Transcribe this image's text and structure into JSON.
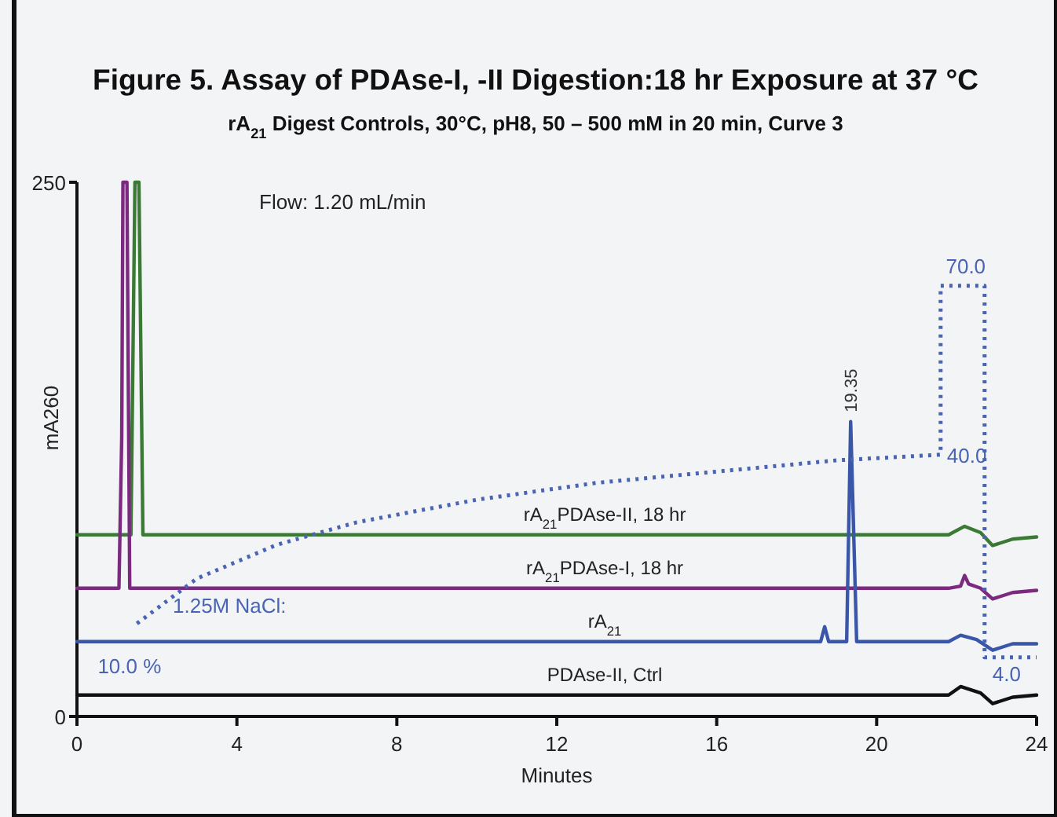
{
  "chart_data": {
    "type": "line",
    "title": "Figure 5. Assay of PDAse-I, -II Digestion:18 hr Exposure at 37 °C",
    "subtitle": "rA$_{21}$ Digest Controls, 30°C, pH8, 50 – 500 mM in 20 min, Curve 3",
    "xlabel": "Minutes",
    "ylabel": "mA260",
    "xlim": [
      0,
      24
    ],
    "xticks": [
      0,
      4,
      8,
      12,
      16,
      20,
      24
    ],
    "ylim": [
      0,
      250
    ],
    "yticks": [
      0,
      250
    ],
    "y2lim": [
      -6.5,
      88.4
    ],
    "grid": false,
    "marker": "none",
    "annotations": [
      "Flow: 1.20 mL/min",
      "1.25M NaCl:",
      {
        "text": "19.35",
        "x": 19.35,
        "y": 138
      }
    ],
    "series": [
      {
        "name": "rA$_{21}$PDAse-II, 18 hr",
        "color": "#3a7a35",
        "x": [
          0,
          1.35,
          1.45,
          1.55,
          1.65,
          21.8,
          22.2,
          22.6,
          22.9,
          23.4,
          24
        ],
        "values": [
          85,
          85,
          250,
          250,
          85,
          85,
          89,
          86,
          80,
          83,
          84
        ]
      },
      {
        "name": "rA$_{21}$PDAse-I, 18 hr",
        "color": "#7b2a80",
        "x": [
          0,
          1.05,
          1.12,
          1.15,
          1.25,
          1.32,
          21.8,
          22.1,
          22.2,
          22.3,
          22.6,
          22.9,
          23.4,
          24
        ],
        "values": [
          60,
          60,
          131,
          250,
          250,
          60,
          60,
          61,
          66,
          62,
          60,
          55,
          58,
          59
        ]
      },
      {
        "name": "rA$_{21}$",
        "color": "#3a56a8",
        "x": [
          0,
          18.6,
          18.7,
          18.8,
          19.25,
          19.35,
          19.5,
          21.8,
          22.1,
          22.5,
          22.9,
          23.4,
          24
        ],
        "values": [
          35,
          35,
          42,
          35,
          35,
          138,
          35,
          35,
          38,
          36,
          31,
          34,
          34
        ]
      },
      {
        "name": "PDAse-II, Ctrl",
        "color": "#111111",
        "x": [
          0,
          21.8,
          22.1,
          22.6,
          22.9,
          23.4,
          24
        ],
        "values": [
          10,
          10,
          14,
          11,
          6,
          9,
          10
        ]
      },
      {
        "color": "#4a64b4",
        "axis": "y2",
        "line_style": "dotted",
        "x": [
          1.5,
          3,
          5,
          7,
          10,
          13,
          16,
          19,
          21.6,
          21.6,
          22.7,
          22.7,
          24
        ],
        "values": [
          10,
          18,
          24,
          28,
          32,
          35,
          37,
          39,
          40,
          70,
          70,
          4,
          4
        ],
        "value_labels": [
          "10.0 %",
          null,
          null,
          null,
          null,
          null,
          null,
          null,
          "40.0",
          "70.0",
          null,
          "4.0",
          null
        ]
      }
    ]
  }
}
